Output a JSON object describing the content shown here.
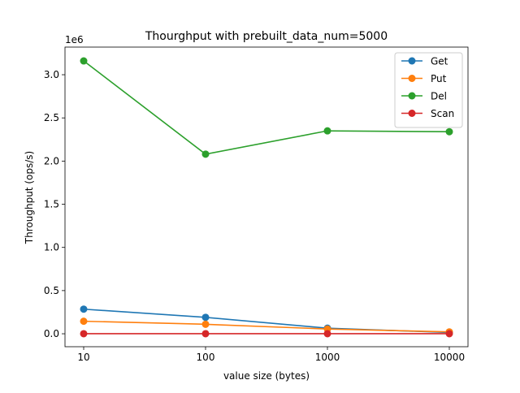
{
  "chart_data": {
    "type": "line",
    "title": "Thourghput with prebuilt_data_num=5000",
    "xlabel": "value size (bytes)",
    "ylabel": "Throughput (ops/s)",
    "y_offset_label": "1e6",
    "x": [
      10,
      100,
      1000,
      10000
    ],
    "x_tick_labels": [
      "10",
      "100",
      "1000",
      "10000"
    ],
    "x_scale": "categorical",
    "ylim": [
      -150000,
      3320000
    ],
    "y_ticks": [
      0,
      500000,
      1000000,
      1500000,
      2000000,
      2500000,
      3000000
    ],
    "y_tick_labels": [
      "0.0",
      "0.5",
      "1.0",
      "1.5",
      "2.0",
      "2.5",
      "3.0"
    ],
    "grid": false,
    "legend_position": "top-right",
    "series": [
      {
        "name": "Get",
        "color": "#1f77b4",
        "values": [
          285000,
          190000,
          65000,
          15000
        ]
      },
      {
        "name": "Put",
        "color": "#ff7f0e",
        "values": [
          145000,
          110000,
          55000,
          22000
        ]
      },
      {
        "name": "Del",
        "color": "#2ca02c",
        "values": [
          3160000,
          2080000,
          2350000,
          2340000
        ]
      },
      {
        "name": "Scan",
        "color": "#d62728",
        "values": [
          1000,
          1000,
          1000,
          1000
        ]
      }
    ]
  }
}
